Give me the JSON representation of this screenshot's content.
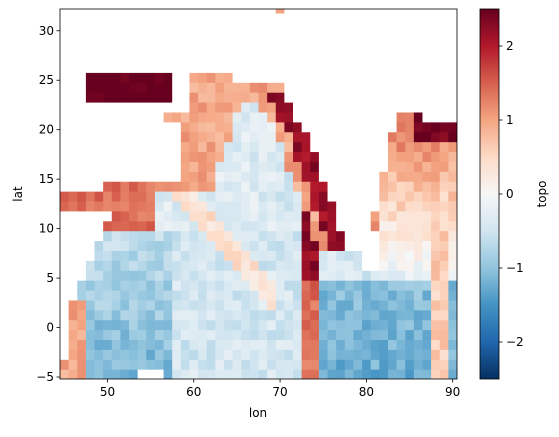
{
  "chart_data": {
    "type": "heatmap",
    "title": "",
    "xlabel": "lon",
    "ylabel": "lat",
    "xlim": [
      44.5,
      90.5
    ],
    "ylim": [
      -5.2,
      32.2
    ],
    "xticks": [
      50,
      60,
      70,
      80,
      90
    ],
    "yticks": [
      -5,
      0,
      5,
      10,
      15,
      20,
      25,
      30
    ],
    "colorbar": {
      "label": "topo",
      "range": [
        -2.5,
        2.5
      ],
      "ticks": [
        -2,
        -1,
        0,
        1,
        2
      ],
      "tick_labels": [
        "−2",
        "−1",
        "0",
        "1",
        "2"
      ],
      "colormap": "RdBu_r",
      "stops": [
        "#053061",
        "#2166ac",
        "#4393c3",
        "#92c5de",
        "#d1e5f0",
        "#f7f7f7",
        "#fddbc7",
        "#f4a582",
        "#d6604d",
        "#b2182b",
        "#67001f"
      ]
    },
    "land_color": "#ffffff",
    "regions": {
      "arabian_sea_basin": {
        "lon": [
          52,
          70
        ],
        "lat": [
          -5,
          18
        ],
        "value": -0.5
      },
      "bay_of_bengal": {
        "lon": [
          80,
          90.5
        ],
        "lat": [
          5,
          21
        ],
        "value": 0.6
      },
      "western_basin": {
        "lon": [
          44.5,
          58
        ],
        "lat": [
          -5,
          12
        ],
        "value": -1.2
      },
      "eastern_basin": {
        "lon": [
          74,
          90.5
        ],
        "lat": [
          -5,
          5
        ],
        "value": -1.1
      },
      "red_sea_persian_gulf": {
        "lon": [
          47,
          57
        ],
        "lat": [
          22,
          31
        ],
        "value": 2.5
      },
      "indian_shelf": {
        "lon": [
          70,
          78
        ],
        "lat": [
          8,
          23
        ],
        "value": 2.2
      }
    }
  }
}
